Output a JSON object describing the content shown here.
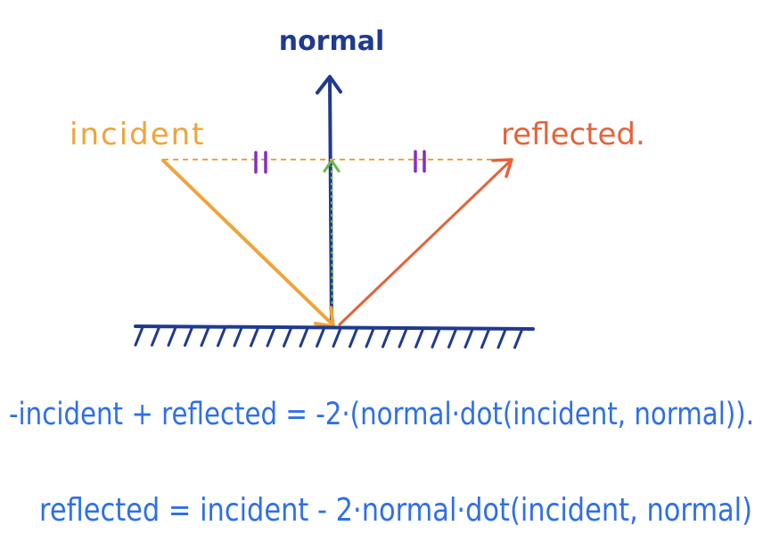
{
  "labels": {
    "normal": "normal",
    "incident": "incident",
    "reflected": "reflected."
  },
  "equations": {
    "line1": "-incident + reflected = -2·(normal·dot(incident, normal)).",
    "line2": "reflected = incident - 2·normal·dot(incident, normal)"
  },
  "colors": {
    "normal": "#1f3a8f",
    "incident": "#f0a43a",
    "reflected": "#e5633a",
    "surface": "#1f3a8f",
    "equal_marks": "#8a2bc4",
    "projection": "#6bb84a",
    "equations": "#2f6fe8"
  }
}
